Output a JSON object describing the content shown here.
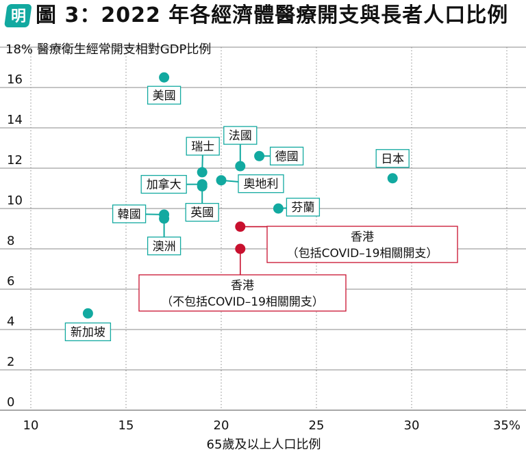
{
  "header": {
    "logo_text": "明",
    "title": "圖 3：2022 年各經濟體醫療開支與長者人口比例"
  },
  "colors": {
    "teal": "#12a9a0",
    "red": "#c8102e",
    "grid": "#8a8a8a"
  },
  "chart_data": {
    "type": "scatter",
    "title": "圖 3：2022 年各經濟體醫療開支與長者人口比例",
    "ylabel": "18% 醫療衛生經常開支相對GDP比例",
    "xlabel": "65歲及以上人口比例",
    "xlim": [
      10,
      35
    ],
    "ylim": [
      0,
      18
    ],
    "x_ticks": [
      "10",
      "15",
      "20",
      "25",
      "30",
      "35%"
    ],
    "y_ticks": [
      "0",
      "2",
      "4",
      "6",
      "8",
      "10",
      "12",
      "14",
      "16"
    ],
    "grid": "both",
    "points": [
      {
        "name": "美國",
        "x": 17.0,
        "y": 16.5,
        "group": "economy"
      },
      {
        "name": "瑞士",
        "x": 19.0,
        "y": 11.8,
        "group": "economy"
      },
      {
        "name": "法國",
        "x": 21.0,
        "y": 12.1,
        "group": "economy"
      },
      {
        "name": "德國",
        "x": 22.0,
        "y": 12.6,
        "group": "economy"
      },
      {
        "name": "日本",
        "x": 29.0,
        "y": 11.5,
        "group": "economy"
      },
      {
        "name": "加拿大",
        "x": 19.0,
        "y": 11.2,
        "group": "economy"
      },
      {
        "name": "奧地利",
        "x": 20.0,
        "y": 11.4,
        "group": "economy"
      },
      {
        "name": "英國",
        "x": 19.0,
        "y": 11.1,
        "group": "economy"
      },
      {
        "name": "芬蘭",
        "x": 23.0,
        "y": 10.0,
        "group": "economy"
      },
      {
        "name": "韓國",
        "x": 17.0,
        "y": 9.7,
        "group": "economy"
      },
      {
        "name": "澳洲",
        "x": 17.0,
        "y": 9.5,
        "group": "economy"
      },
      {
        "name": "新加坡",
        "x": 13.0,
        "y": 4.8,
        "group": "economy"
      },
      {
        "name": "香港",
        "name_line2": "（包括COVID–19相關開支）",
        "x": 21.0,
        "y": 9.1,
        "group": "hongkong"
      },
      {
        "name": "香港",
        "name_line2": "（不包括COVID–19相關開支）",
        "x": 21.0,
        "y": 8.0,
        "group": "hongkong"
      }
    ]
  }
}
